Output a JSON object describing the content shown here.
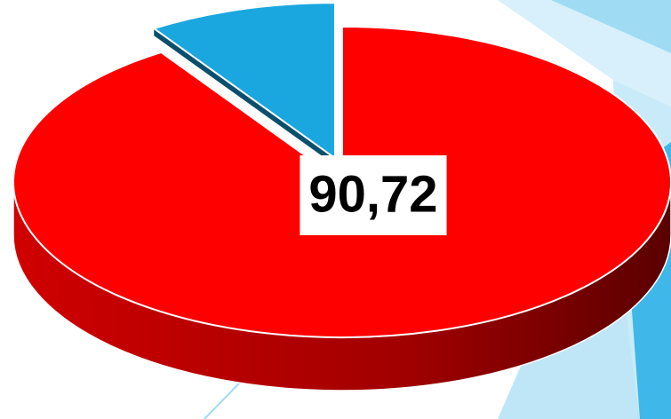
{
  "chart_data": {
    "type": "pie",
    "values": [
      90.72,
      9.28
    ],
    "value_labels": [
      "90,72",
      null
    ],
    "colors": [
      "#ff0000",
      "#1aa7e0"
    ],
    "start": "top",
    "direction": "clockwise"
  }
}
